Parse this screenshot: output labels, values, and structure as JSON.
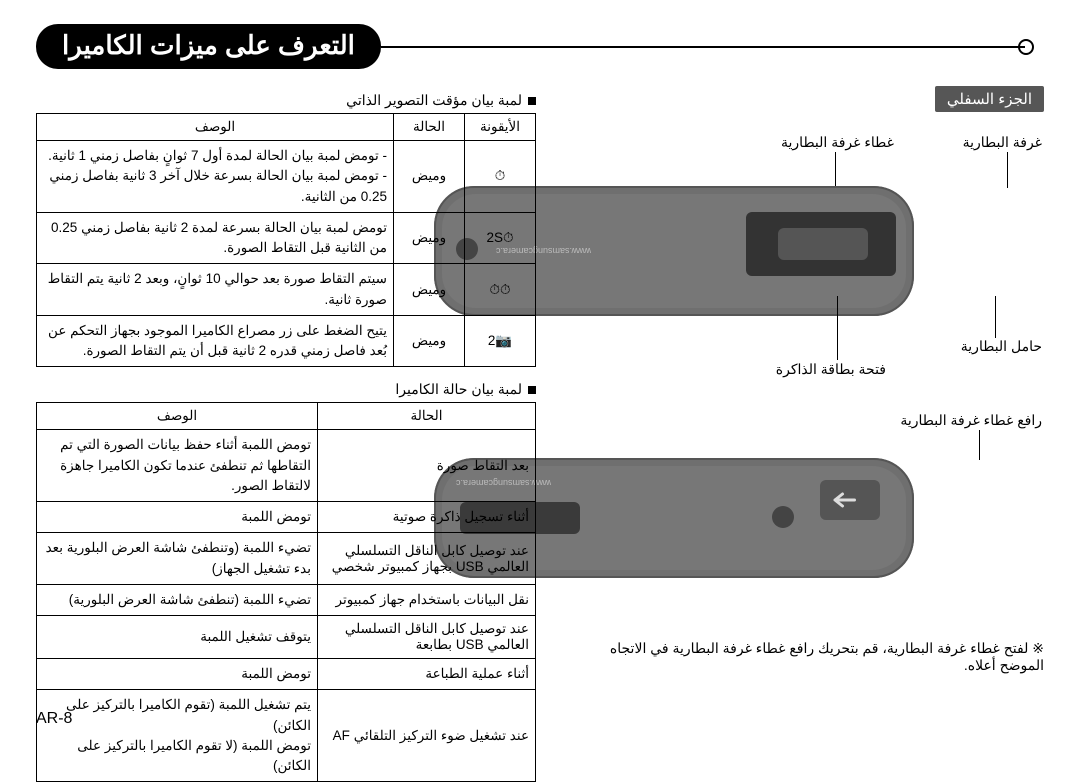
{
  "page_number": "AR-8",
  "title": "التعرف على ميزات الكاميرا",
  "bottom_section_label": "الجزء السفلي",
  "camera_top": {
    "labels": {
      "battery_chamber": "غرفة البطارية",
      "battery_cover": "غطاء غرفة البطارية",
      "battery_holder": "حامل البطارية",
      "card_slot": "فتحة بطاقة الذاكرة"
    }
  },
  "camera_bottom": {
    "cover_latch": "رافع غطاء غرفة البطارية"
  },
  "footnote": "※ لفتح غطاء غرفة البطارية، قم بتحريك رافع غطاء غرفة البطارية في الاتجاه الموضح أعلاه.",
  "timer_table": {
    "caption": "لمبة بيان مؤقت التصوير الذاتي",
    "headers": {
      "icon": "الأيقونة",
      "state": "الحالة",
      "desc": "الوصف"
    },
    "rows": [
      {
        "icon": "⏱",
        "state": "وميض",
        "desc": "- تومض لمبة بيان الحالة لمدة أول 7 ثوانٍ بفاصل زمني 1 ثانية.\n- تومض لمبة بيان الحالة بسرعة خلال آخر 3 ثانية بفاصل زمني 0.25 من الثانية."
      },
      {
        "icon": "⏱2S",
        "state": "وميض",
        "desc": "تومض لمبة بيان الحالة بسرعة لمدة 2 ثانية بفاصل زمني 0.25 من الثانية قبل التقاط الصورة."
      },
      {
        "icon": "⏱⏱",
        "state": "وميض",
        "desc": "سيتم التقاط صورة بعد حوالي 10 ثوانٍ، وبعد 2 ثانية يتم التقاط صورة ثانية."
      },
      {
        "icon": "📷2",
        "state": "وميض",
        "desc": "يتيح الضغط على زر مصراع الكاميرا الموجود بجهاز التحكم عن بُعد فاصل زمني قدره 2 ثانية قبل أن يتم التقاط الصورة."
      }
    ]
  },
  "status_table": {
    "caption": "لمبة بيان حالة الكاميرا",
    "headers": {
      "state": "الحالة",
      "desc": "الوصف"
    },
    "rows": [
      {
        "state": "بعد التقاط صورة",
        "desc": "تومض اللمبة أثناء حفظ بيانات الصورة التي تم التقاطها ثم تنطفئ عندما تكون الكاميرا جاهزة لالتقاط الصور."
      },
      {
        "state": "أثناء تسجيل ذاكرة صوتية",
        "desc": "تومض اللمبة"
      },
      {
        "state": "عند توصيل كابل الناقل التسلسلي العالمي USB بجهاز كمبيوتر شخصي",
        "desc": "تضيء اللمبة (وتنطفئ شاشة العرض البلورية بعد بدء تشغيل الجهاز)"
      },
      {
        "state": "نقل البيانات باستخدام جهاز كمبيوتر",
        "desc": "تضيء اللمبة (تنطفئ شاشة العرض البلورية)"
      },
      {
        "state": "عند توصيل كابل الناقل التسلسلي العالمي USB بطابعة",
        "desc": "يتوقف تشغيل اللمبة"
      },
      {
        "state": "أثناء عملية الطباعة",
        "desc": "تومض اللمبة"
      },
      {
        "state": "عند تشغيل ضوء التركيز التلقائي AF",
        "desc": "يتم تشغيل اللمبة (تقوم الكاميرا بالتركيز على الكائن)\nتومض اللمبة (لا تقوم الكاميرا بالتركيز على الكائن)"
      }
    ]
  },
  "colors": {
    "title_bg": "#000000",
    "title_fg": "#ffffff",
    "bar_bg": "#565656",
    "camera_body": "#6f6f6f",
    "border": "#000000"
  }
}
